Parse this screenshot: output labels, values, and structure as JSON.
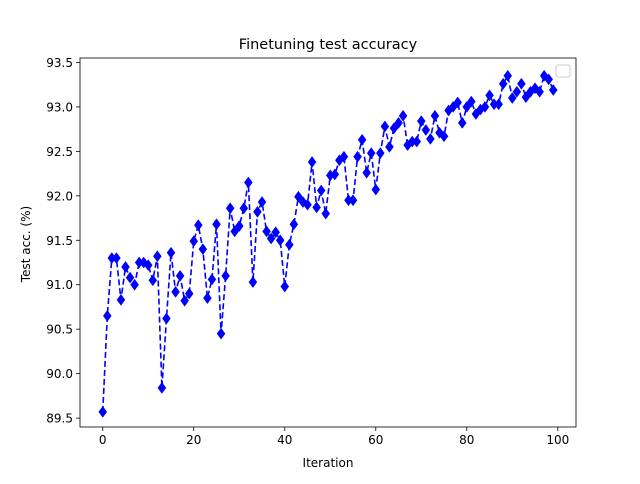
{
  "chart_data": {
    "type": "line",
    "title": "Finetuning test accuracy",
    "xlabel": "Iteration",
    "ylabel": "Test acc. (%)",
    "xlim": [
      -5,
      104
    ],
    "ylim": [
      89.4,
      93.55
    ],
    "xticks": [
      0,
      20,
      40,
      60,
      80,
      100
    ],
    "yticks": [
      89.5,
      90.0,
      90.5,
      91.0,
      91.5,
      92.0,
      92.5,
      93.0,
      93.5
    ],
    "ytick_labels": [
      "89.5",
      "90.0",
      "90.5",
      "91.0",
      "91.5",
      "92.0",
      "92.5",
      "93.0",
      "93.5"
    ],
    "grid": false,
    "legend": "top-right (empty)",
    "line_color": "#0000ff",
    "line_style": "dashed",
    "marker": "diamond",
    "series": [
      {
        "x": [
          0,
          1,
          2,
          3,
          4,
          5,
          6,
          7,
          8,
          9,
          10,
          11,
          12,
          13,
          14,
          15,
          16,
          17,
          18,
          19,
          20,
          21,
          22,
          23,
          24,
          25,
          26,
          27,
          28,
          29,
          30,
          31,
          32,
          33,
          34,
          35,
          36,
          37,
          38,
          39,
          40,
          41,
          42,
          43,
          44,
          45,
          46,
          47,
          48,
          49,
          50,
          51,
          52,
          53,
          54,
          55,
          56,
          57,
          58,
          59,
          60,
          61,
          62,
          63,
          64,
          65,
          66,
          67,
          68,
          69,
          70,
          71,
          72,
          73,
          74,
          75,
          76,
          77,
          78,
          79,
          80,
          81,
          82,
          83,
          84,
          85,
          86,
          87,
          88,
          89,
          90,
          91,
          92,
          93,
          94,
          95,
          96,
          97,
          98,
          99
        ],
        "values": [
          89.57,
          90.65,
          91.3,
          91.3,
          90.83,
          91.2,
          91.08,
          91.0,
          91.25,
          91.25,
          91.22,
          91.05,
          91.32,
          89.84,
          90.62,
          91.36,
          90.92,
          91.1,
          90.82,
          90.9,
          91.49,
          91.67,
          91.4,
          90.85,
          91.06,
          91.68,
          90.45,
          91.1,
          91.86,
          91.6,
          91.66,
          91.86,
          92.15,
          91.03,
          91.82,
          91.93,
          91.6,
          91.52,
          91.59,
          91.5,
          90.98,
          91.45,
          91.68,
          91.99,
          91.93,
          91.9,
          92.38,
          91.87,
          92.06,
          91.8,
          92.23,
          92.24,
          92.4,
          92.44,
          91.95,
          91.95,
          92.44,
          92.63,
          92.26,
          92.48,
          92.07,
          92.48,
          92.78,
          92.55,
          92.76,
          92.82,
          92.9,
          92.57,
          92.61,
          92.61,
          92.84,
          92.74,
          92.64,
          92.9,
          92.71,
          92.67,
          92.96,
          93.0,
          93.05,
          92.82,
          93.0,
          93.06,
          92.92,
          92.97,
          93.0,
          93.13,
          93.03,
          93.03,
          93.26,
          93.35,
          93.1,
          93.17,
          93.26,
          93.11,
          93.17,
          93.21,
          93.17,
          93.35,
          93.31,
          93.19
        ]
      }
    ]
  }
}
